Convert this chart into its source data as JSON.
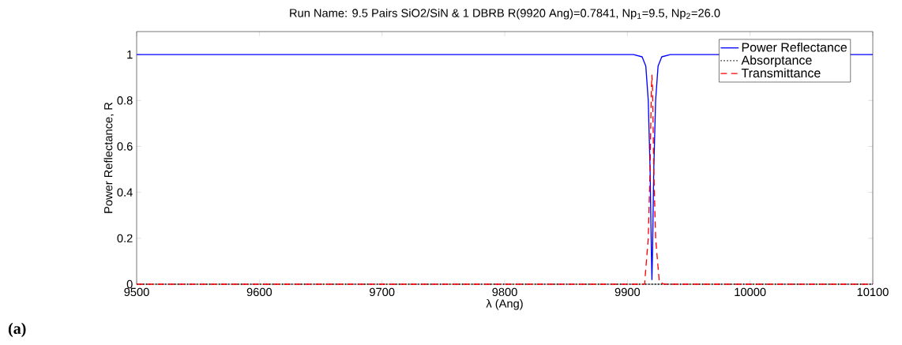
{
  "chart_data": {
    "type": "line",
    "title": "Run Name: 9.5 Pairs SiO2/SiN & 1 DBRB R(9920 Ang)=0.7841, Np$_{1}$=9.5, Np$_{2}$=26.0",
    "xlabel": "λ (Ang)",
    "ylabel": "Power Reflectance, R",
    "xlim": [
      9500,
      10100
    ],
    "ylim": [
      0,
      1.1
    ],
    "xticks": [
      9500,
      9600,
      9700,
      9800,
      9900,
      10000,
      10100
    ],
    "yticks": [
      0,
      0.2,
      0.4,
      0.6,
      0.8,
      1
    ],
    "legend": "top right",
    "grid": false,
    "annotations": [
      "(a)"
    ],
    "series": [
      {
        "name": "Power Reflectance",
        "color": "#0000ff",
        "line_style": "solid",
        "x": [
          9500,
          9905,
          9912,
          9915,
          9917,
          9918.5,
          9919.5,
          9920,
          9920.5,
          9921.5,
          9923,
          9925,
          9928,
          9935,
          10100
        ],
        "values": [
          1,
          1,
          0.99,
          0.95,
          0.8,
          0.5,
          0.15,
          0.02,
          0.15,
          0.5,
          0.8,
          0.95,
          0.99,
          1,
          1
        ]
      },
      {
        "name": "Absorptance",
        "color": "#000000",
        "line_style": "dotted",
        "x": [
          9500,
          10100
        ],
        "values": [
          0,
          0
        ]
      },
      {
        "name": "Transmittance",
        "color": "#ff0000",
        "line_style": "dashed",
        "x": [
          9500,
          9914,
          9917,
          9918.5,
          9919.5,
          9920,
          9920.5,
          9921.5,
          9923,
          9926,
          9930,
          10100
        ],
        "values": [
          0,
          0,
          0.2,
          0.5,
          0.85,
          0.91,
          0.85,
          0.5,
          0.2,
          0.01,
          0,
          0
        ]
      }
    ]
  }
}
